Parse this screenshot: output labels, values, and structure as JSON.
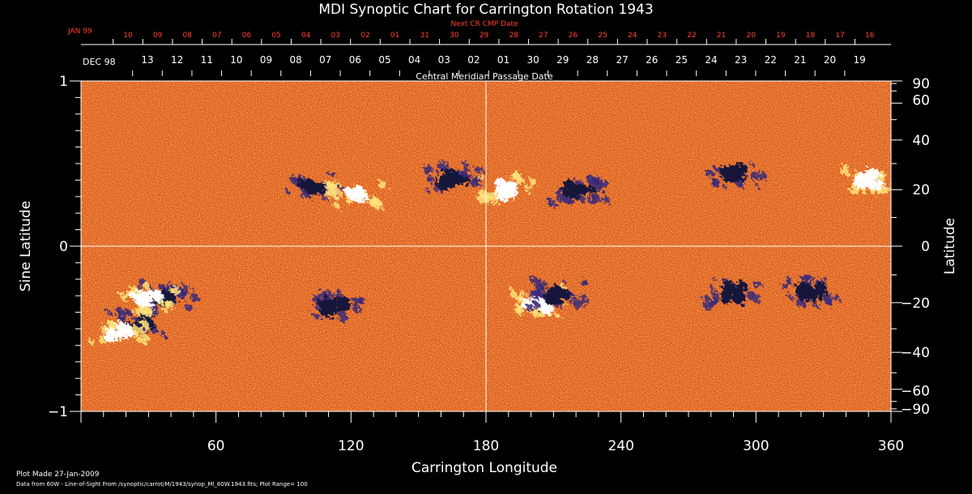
{
  "chart_data": {
    "type": "heatmap",
    "title": "MDI Synoptic Chart for Carrington Rotation 1943",
    "xlabel": "Carrington Longitude",
    "ylabel_left": "Sine Latitude",
    "ylabel_right": "Latitude",
    "xlim": [
      0,
      360
    ],
    "ylim": [
      -1,
      1
    ],
    "x_ticks": [
      60,
      120,
      180,
      240,
      300,
      360
    ],
    "y_ticks_left": [
      1,
      0,
      -1
    ],
    "y_ticks_right": [
      90,
      60,
      40,
      20,
      0,
      -20,
      -40,
      -60,
      -90
    ],
    "top_axis_label": "Central Meridian Passage Date",
    "top_axis_start_label": "DEC 98",
    "top_axis_dates": [
      "13",
      "12",
      "11",
      "10",
      "09",
      "08",
      "07",
      "06",
      "05",
      "04",
      "03",
      "02",
      "01",
      "30",
      "29",
      "28",
      "27",
      "26",
      "25",
      "24",
      "23",
      "22",
      "21",
      "20",
      "19"
    ],
    "next_axis_label": "Next CR CMP Date",
    "next_axis_start_label": "JAN 99",
    "next_axis_dates": [
      "10",
      "09",
      "08",
      "07",
      "06",
      "05",
      "04",
      "03",
      "02",
      "01",
      "31",
      "30",
      "29",
      "28",
      "27",
      "26",
      "25",
      "24",
      "23",
      "22",
      "21",
      "20",
      "19",
      "18",
      "17",
      "16"
    ],
    "plot_made": "Plot Made 27-Jan-2009",
    "data_note": "Data from 60W - Line-of-Sight From /synoptic/carrot/M/1943/synop_Ml_60W.1943.fits; Plot Range= 100",
    "active_regions": [
      {
        "polarity": "negative",
        "lon": 104,
        "sinlat": 0.36
      },
      {
        "polarity": "positive",
        "lon": 122,
        "sinlat": 0.3
      },
      {
        "polarity": "negative",
        "lon": 165,
        "sinlat": 0.42
      },
      {
        "polarity": "positive",
        "lon": 190,
        "sinlat": 0.34
      },
      {
        "polarity": "negative",
        "lon": 221,
        "sinlat": 0.33
      },
      {
        "polarity": "negative",
        "lon": 291,
        "sinlat": 0.44
      },
      {
        "polarity": "positive",
        "lon": 350,
        "sinlat": 0.4
      },
      {
        "polarity": "negative",
        "lon": 25,
        "sinlat": -0.47
      },
      {
        "polarity": "positive",
        "lon": 17,
        "sinlat": -0.52
      },
      {
        "polarity": "negative",
        "lon": 38,
        "sinlat": -0.3
      },
      {
        "polarity": "positive",
        "lon": 30,
        "sinlat": -0.32
      },
      {
        "polarity": "negative",
        "lon": 113,
        "sinlat": -0.36
      },
      {
        "polarity": "positive",
        "lon": 203,
        "sinlat": -0.34
      },
      {
        "polarity": "negative",
        "lon": 212,
        "sinlat": -0.29
      },
      {
        "polarity": "negative",
        "lon": 290,
        "sinlat": -0.28
      },
      {
        "polarity": "negative",
        "lon": 325,
        "sinlat": -0.27
      }
    ]
  }
}
